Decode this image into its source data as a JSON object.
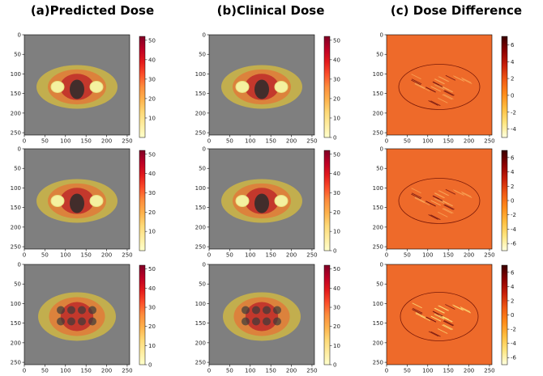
{
  "titles": [
    "(a)Predicted Dose",
    "(b)Clinical Dose",
    "(c) Dose Difference"
  ],
  "colors": {
    "background": "#7f7f7f",
    "difference_background": "#ee6a2a",
    "dose_colormap": [
      "#ffffcc",
      "#ffeda0",
      "#fed976",
      "#feb24c",
      "#fd8d3c",
      "#fc4e2a",
      "#e31a1c",
      "#bd0026",
      "#800026"
    ],
    "difference_colormap": [
      "#ffffe0",
      "#ffe680",
      "#ffbf40",
      "#ff8c1a",
      "#f05a14",
      "#c8200a",
      "#8b0000",
      "#3a0000"
    ]
  },
  "chart_data": [
    {
      "type": "heatmap",
      "panel": "a-row1",
      "xticks": [
        0,
        50,
        100,
        150,
        200,
        250
      ],
      "yticks": [
        0,
        50,
        100,
        150,
        200,
        250
      ],
      "colorbar_ticks": [
        10,
        20,
        30,
        40,
        50
      ],
      "colorbar_range": [
        0,
        52
      ],
      "anatomy": "hips"
    },
    {
      "type": "heatmap",
      "panel": "b-row1",
      "xticks": [
        0,
        50,
        100,
        150,
        200,
        250
      ],
      "yticks": [
        0,
        50,
        100,
        150,
        200,
        250
      ],
      "colorbar_ticks": [
        0,
        10,
        20,
        30,
        40,
        50
      ],
      "colorbar_range": [
        0,
        52
      ],
      "anatomy": "hips"
    },
    {
      "type": "heatmap",
      "panel": "c-row1",
      "xticks": [
        0,
        50,
        100,
        150,
        200,
        250
      ],
      "yticks": [
        0,
        50,
        100,
        150,
        200,
        250
      ],
      "colorbar_ticks": [
        -4,
        -2,
        0,
        2,
        4,
        6
      ],
      "colorbar_range": [
        -5,
        7
      ],
      "anatomy": "hips"
    },
    {
      "type": "heatmap",
      "panel": "a-row2",
      "xticks": [
        0,
        50,
        100,
        150,
        200,
        250
      ],
      "yticks": [
        0,
        50,
        100,
        150,
        200,
        250
      ],
      "colorbar_ticks": [
        10,
        20,
        30,
        40,
        50
      ],
      "colorbar_range": [
        0,
        52
      ],
      "anatomy": "hips"
    },
    {
      "type": "heatmap",
      "panel": "b-row2",
      "xticks": [
        0,
        50,
        100,
        150,
        200,
        250
      ],
      "yticks": [
        0,
        50,
        100,
        150,
        200,
        250
      ],
      "colorbar_ticks": [
        0,
        10,
        20,
        30,
        40,
        50
      ],
      "colorbar_range": [
        0,
        52
      ],
      "anatomy": "hips"
    },
    {
      "type": "heatmap",
      "panel": "c-row2",
      "xticks": [
        0,
        50,
        100,
        150,
        200,
        250
      ],
      "yticks": [
        0,
        50,
        100,
        150,
        200,
        250
      ],
      "colorbar_ticks": [
        -6,
        -4,
        -2,
        0,
        2,
        4,
        6
      ],
      "colorbar_range": [
        -7,
        7
      ],
      "anatomy": "hips"
    },
    {
      "type": "heatmap",
      "panel": "a-row3",
      "xticks": [
        0,
        50,
        100,
        150,
        200,
        250
      ],
      "yticks": [
        0,
        50,
        100,
        150,
        200,
        250
      ],
      "colorbar_ticks": [
        0,
        10,
        20,
        30,
        40,
        50
      ],
      "colorbar_range": [
        0,
        52
      ],
      "anatomy": "pelvis"
    },
    {
      "type": "heatmap",
      "panel": "b-row3",
      "xticks": [
        0,
        50,
        100,
        150,
        200,
        250
      ],
      "yticks": [
        0,
        50,
        100,
        150,
        200,
        250
      ],
      "colorbar_ticks": [
        0,
        10,
        20,
        30,
        40,
        50
      ],
      "colorbar_range": [
        0,
        52
      ],
      "anatomy": "pelvis"
    },
    {
      "type": "heatmap",
      "panel": "c-row3",
      "xticks": [
        0,
        50,
        100,
        150,
        200,
        250
      ],
      "yticks": [
        0,
        50,
        100,
        150,
        200,
        250
      ],
      "colorbar_ticks": [
        -6,
        -4,
        -2,
        0,
        2,
        4,
        6
      ],
      "colorbar_range": [
        -7,
        7
      ],
      "anatomy": "pelvis"
    }
  ]
}
